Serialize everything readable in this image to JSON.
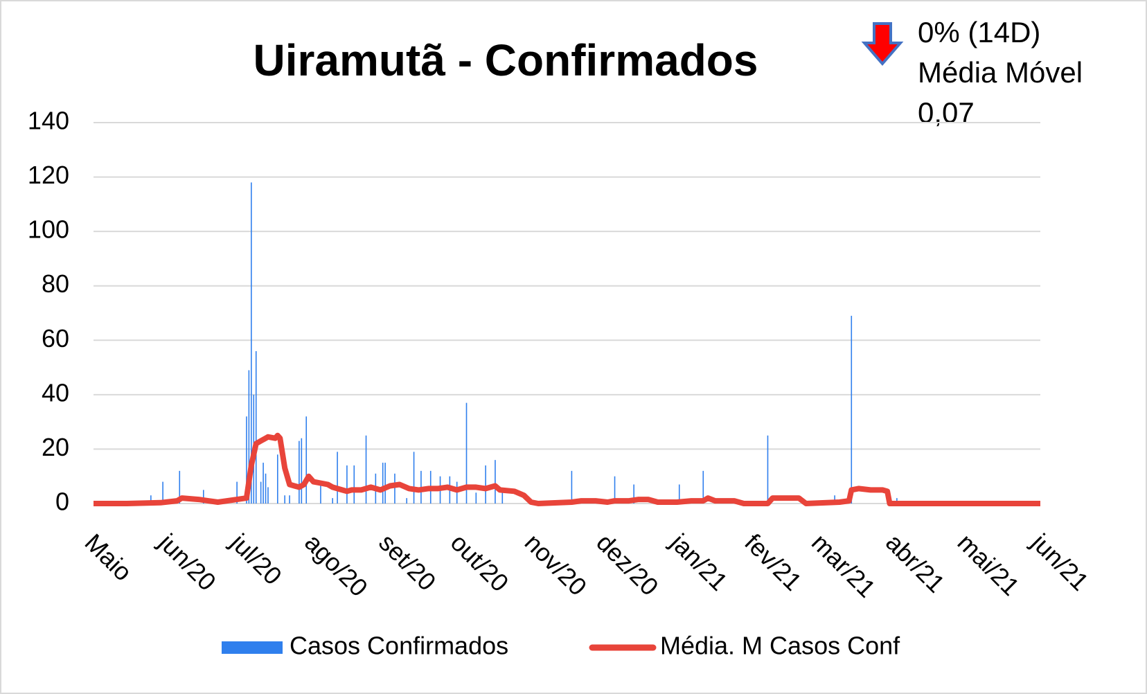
{
  "chart_data": {
    "type": "bar-line",
    "title": "Uiramutã - Confirmados",
    "annotations": [
      "0% (14D)",
      "Média Móvel",
      "0,07"
    ],
    "xlim": [
      0,
      396
    ],
    "xticks": [
      {
        "value": 0,
        "label": "Maio"
      },
      {
        "value": 31,
        "label": "jun/20"
      },
      {
        "value": 61,
        "label": "jul/20"
      },
      {
        "value": 92,
        "label": "ago/20"
      },
      {
        "value": 123,
        "label": "set/20"
      },
      {
        "value": 153,
        "label": "out/20"
      },
      {
        "value": 184,
        "label": "nov/20"
      },
      {
        "value": 214,
        "label": "dez/20"
      },
      {
        "value": 245,
        "label": "jan/21"
      },
      {
        "value": 276,
        "label": "fev/21"
      },
      {
        "value": 304,
        "label": "mar/21"
      },
      {
        "value": 335,
        "label": "abr/21"
      },
      {
        "value": 365,
        "label": "mai/21"
      },
      {
        "value": 396,
        "label": "jun/21"
      }
    ],
    "ylim": [
      0,
      140
    ],
    "yticks": [
      0,
      20,
      40,
      60,
      80,
      100,
      120,
      140
    ],
    "grid": true,
    "legend": "bottom",
    "series": [
      {
        "name": "Casos Confirmados",
        "type": "bar",
        "color": "#2f7fed",
        "x": [
          24,
          29,
          36,
          46,
          60,
          64,
          65,
          66,
          67,
          68,
          70,
          71,
          72,
          73,
          77,
          80,
          82,
          86,
          87,
          89,
          95,
          100,
          102,
          106,
          109,
          114,
          118,
          121,
          122,
          126,
          131,
          134,
          137,
          141,
          145,
          149,
          152,
          156,
          160,
          164,
          168,
          171,
          200,
          218,
          226,
          245,
          255,
          282,
          310,
          317,
          336
        ],
        "values": [
          3,
          8,
          12,
          5,
          8,
          32,
          49,
          118,
          40,
          56,
          8,
          15,
          11,
          6,
          18,
          3,
          3,
          23,
          24,
          32,
          7,
          2,
          19,
          14,
          14,
          25,
          11,
          15,
          15,
          11,
          2,
          19,
          12,
          12,
          10,
          10,
          8,
          37,
          4,
          14,
          16,
          5,
          12,
          10,
          7,
          7,
          12,
          25,
          3,
          69,
          2
        ]
      },
      {
        "name": "Média. M Casos Conf",
        "type": "line",
        "color": "#e8443a",
        "x": [
          0,
          14,
          28,
          35,
          37,
          44,
          48,
          52,
          60,
          64,
          66,
          68,
          70,
          73,
          76,
          77,
          78,
          80,
          82,
          84,
          86,
          88,
          90,
          92,
          95,
          98,
          100,
          104,
          106,
          108,
          112,
          116,
          120,
          124,
          128,
          132,
          136,
          140,
          144,
          148,
          152,
          156,
          160,
          164,
          168,
          170,
          176,
          180,
          183,
          186,
          200,
          204,
          210,
          215,
          218,
          224,
          228,
          232,
          236,
          244,
          250,
          255,
          257,
          260,
          268,
          272,
          282,
          284,
          295,
          298,
          312,
          316,
          317,
          320,
          325,
          330,
          332,
          333,
          396
        ],
        "values": [
          0,
          0,
          0.3,
          1,
          2,
          1.5,
          1,
          0.5,
          1.5,
          2,
          14,
          22,
          23,
          24.5,
          24,
          25,
          24,
          13,
          7,
          6.5,
          6,
          7,
          10,
          8,
          7.5,
          7,
          6,
          5,
          4.5,
          5,
          5,
          6,
          5,
          6.5,
          7,
          5.5,
          5,
          5.5,
          5.5,
          6,
          5,
          6,
          6,
          5.5,
          6.5,
          5,
          4.5,
          3,
          0.5,
          0,
          0.5,
          1,
          1,
          0.5,
          1,
          1,
          1.5,
          1.5,
          0.5,
          0.5,
          1,
          1,
          2,
          1,
          1,
          0,
          0,
          2,
          2,
          0,
          0.5,
          1,
          5,
          5.5,
          5,
          5,
          4.5,
          0,
          0
        ]
      }
    ]
  }
}
